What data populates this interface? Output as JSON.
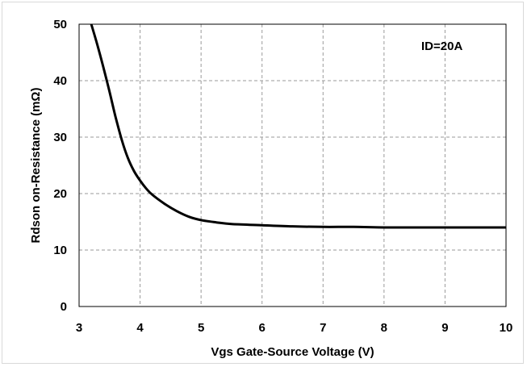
{
  "chart_data": {
    "type": "line",
    "xlabel": "Vgs Gate-Source Voltage (V)",
    "ylabel": "Rdson on-Resistance (mΩ)",
    "xlim": [
      3,
      10
    ],
    "ylim": [
      0,
      50
    ],
    "xticks": [
      "3",
      "4",
      "5",
      "6",
      "7",
      "8",
      "9",
      "10"
    ],
    "yticks": [
      "0",
      "10",
      "20",
      "30",
      "40",
      "50"
    ],
    "grid": "dashed",
    "annotation": "ID=20A",
    "series": [
      {
        "x": [
          3.2,
          3.3,
          3.4,
          3.5,
          3.6,
          3.7,
          3.8,
          3.9,
          4.0,
          4.1,
          4.2,
          4.4,
          4.6,
          4.8,
          5.0,
          5.25,
          5.5,
          6.0,
          6.5,
          7.0,
          7.5,
          8.0,
          8.5,
          9.0,
          9.5,
          10.0
        ],
        "y": [
          50.0,
          46.3,
          42.3,
          38.0,
          33.5,
          29.5,
          26.3,
          24.0,
          22.3,
          20.9,
          19.8,
          18.2,
          16.9,
          15.9,
          15.3,
          14.9,
          14.6,
          14.4,
          14.2,
          14.1,
          14.1,
          14.0,
          14.0,
          14.0,
          14.0,
          14.0
        ],
        "color": "#000000"
      }
    ]
  }
}
